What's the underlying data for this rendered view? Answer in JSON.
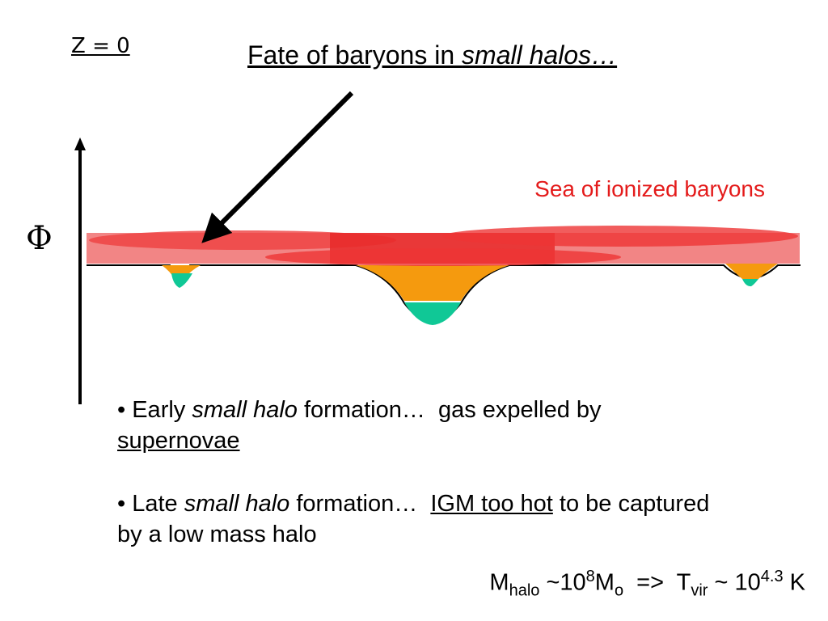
{
  "label_z": "Z = 0",
  "title": {
    "parts": [
      "Fate of baryons in ",
      "small halos…"
    ]
  },
  "axis_label": "Φ",
  "sea_label": "Sea of ionized baryons",
  "bullets": [
    {
      "parts": [
        "Early ",
        "small halo",
        " formation…  gas expelled by ",
        "supernovae"
      ]
    },
    {
      "parts": [
        "Late ",
        "small halo",
        " formation…  ",
        "IGM too hot",
        " to be captured by a low mass halo"
      ]
    }
  ],
  "formula": {
    "parts": [
      "M",
      "halo",
      " ~10",
      "8",
      "M",
      "o",
      "  =>  T",
      "vir",
      " ~ 10",
      "4.3",
      " K"
    ]
  }
}
